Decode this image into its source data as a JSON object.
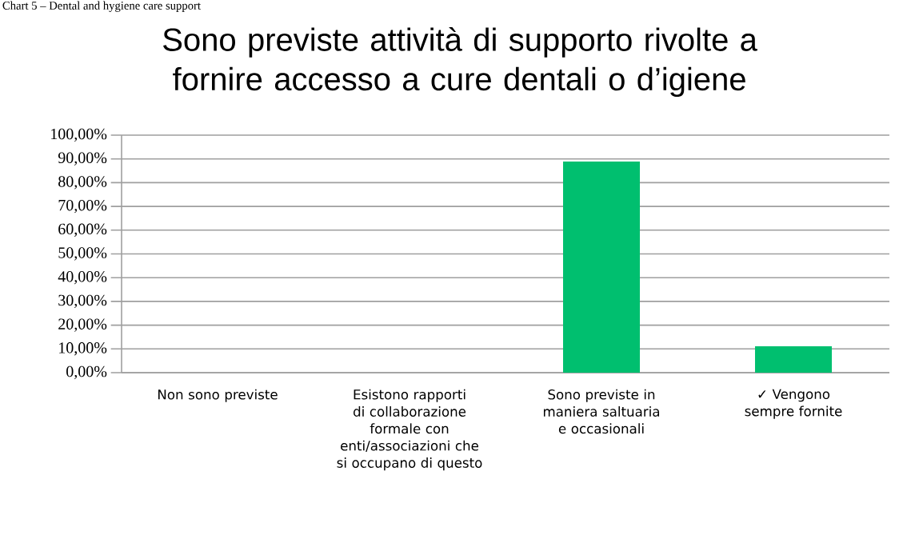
{
  "chart_data": {
    "type": "bar",
    "title": "Sono previste attività di supporto rivolte a fornire accesso a cure dentali o d’igiene",
    "annotations": [
      "Chart 5 – Dental and hygiene care support"
    ],
    "categories": [
      "Non sono previste",
      "Esistono rapporti di collaborazione formale con enti/associazioni che si occupano di questo",
      "Sono previste in maniera saltuaria e occasionali",
      "✓ Vengono sempre fornite"
    ],
    "values": [
      0,
      0,
      88.9,
      11.1
    ],
    "color": "#00bf6f",
    "ylim": [
      0,
      100
    ],
    "yticks": [
      {
        "value": 0,
        "label": "0,00%"
      },
      {
        "value": 10,
        "label": "10,00%"
      },
      {
        "value": 20,
        "label": "20,00%"
      },
      {
        "value": 30,
        "label": "30,00%"
      },
      {
        "value": 40,
        "label": "40,00%"
      },
      {
        "value": 50,
        "label": "50,00%"
      },
      {
        "value": 60,
        "label": "60,00%"
      },
      {
        "value": 70,
        "label": "70,00%"
      },
      {
        "value": 80,
        "label": "80,00%"
      },
      {
        "value": 90,
        "label": "90,00%"
      },
      {
        "value": 100,
        "label": "100,00%"
      }
    ],
    "grid": "y"
  }
}
